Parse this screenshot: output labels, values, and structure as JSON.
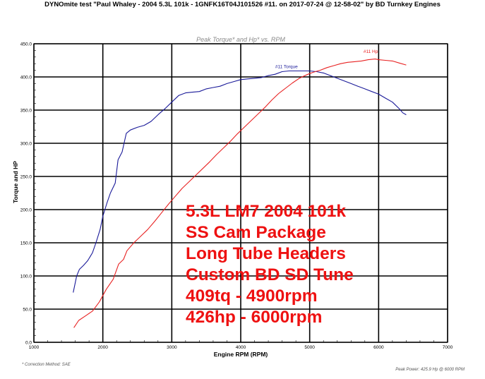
{
  "header": {
    "title": "DYNOmite test \"Paul Whaley - 2004 5.3L 101k - 1GNFK16T04J101526 #11. on 2017-07-24 @ 12-58-02\" by BD Turnkey Engines"
  },
  "footer": {
    "correction_method": "* Correction Method: SAE",
    "peak_power": "Peak Power: 425.9 Hp @ 6000 RPM"
  },
  "annotation": {
    "lines": [
      "5.3L LM7 2004 101k",
      "SS Cam Package",
      "Long Tube Headers",
      "Custom BD SD Tune",
      "409tq - 4900rpm",
      "426hp - 6000rpm"
    ]
  },
  "chart_data": {
    "type": "line",
    "title": "Peak Torque* and Hp* vs. RPM",
    "xlabel": "Engine RPM (RPM)",
    "ylabel": "Torque and HP",
    "xlim": [
      1000,
      7000
    ],
    "ylim": [
      0,
      450
    ],
    "x_ticks": [
      "1000",
      "2000",
      "3000",
      "4000",
      "5000",
      "6000",
      "7000"
    ],
    "y_ticks": [
      "0.0",
      "50.0",
      "100.0",
      "150.0",
      "200.0",
      "250.0",
      "300.0",
      "350.0",
      "400.0",
      "450.0"
    ],
    "grid": true,
    "series": [
      {
        "name": "#11 Torque",
        "color": "#1a1a99",
        "points": [
          [
            1570,
            75
          ],
          [
            1620,
            100
          ],
          [
            1660,
            110
          ],
          [
            1720,
            116
          ],
          [
            1780,
            123
          ],
          [
            1850,
            135
          ],
          [
            1900,
            150
          ],
          [
            1960,
            170
          ],
          [
            2000,
            190
          ],
          [
            2060,
            210
          ],
          [
            2110,
            225
          ],
          [
            2180,
            240
          ],
          [
            2220,
            275
          ],
          [
            2280,
            287
          ],
          [
            2340,
            315
          ],
          [
            2400,
            320
          ],
          [
            2500,
            324
          ],
          [
            2600,
            327
          ],
          [
            2700,
            333
          ],
          [
            2800,
            343
          ],
          [
            2900,
            352
          ],
          [
            3000,
            362
          ],
          [
            3100,
            372
          ],
          [
            3200,
            376
          ],
          [
            3300,
            377
          ],
          [
            3400,
            378
          ],
          [
            3500,
            382
          ],
          [
            3600,
            384
          ],
          [
            3700,
            386
          ],
          [
            3800,
            390
          ],
          [
            3900,
            393
          ],
          [
            4000,
            396
          ],
          [
            4100,
            397
          ],
          [
            4200,
            398
          ],
          [
            4300,
            399
          ],
          [
            4400,
            402
          ],
          [
            4500,
            404
          ],
          [
            4600,
            408
          ],
          [
            4700,
            409
          ],
          [
            4800,
            409
          ],
          [
            4900,
            409
          ],
          [
            5000,
            409
          ],
          [
            5100,
            408
          ],
          [
            5200,
            406
          ],
          [
            5300,
            402
          ],
          [
            5400,
            398
          ],
          [
            5500,
            394
          ],
          [
            5600,
            390
          ],
          [
            5700,
            386
          ],
          [
            5800,
            382
          ],
          [
            5900,
            378
          ],
          [
            6000,
            374
          ],
          [
            6100,
            368
          ],
          [
            6200,
            362
          ],
          [
            6300,
            352
          ],
          [
            6350,
            346
          ],
          [
            6400,
            343
          ]
        ]
      },
      {
        "name": "#11 Hp",
        "color": "#e82222",
        "points": [
          [
            1580,
            22
          ],
          [
            1650,
            33
          ],
          [
            1750,
            40
          ],
          [
            1850,
            47
          ],
          [
            1950,
            61
          ],
          [
            2050,
            80
          ],
          [
            2150,
            95
          ],
          [
            2230,
            118
          ],
          [
            2300,
            125
          ],
          [
            2350,
            138
          ],
          [
            2450,
            150
          ],
          [
            2550,
            160
          ],
          [
            2650,
            170
          ],
          [
            2750,
            182
          ],
          [
            2850,
            195
          ],
          [
            2950,
            208
          ],
          [
            3050,
            220
          ],
          [
            3150,
            232
          ],
          [
            3250,
            242
          ],
          [
            3350,
            252
          ],
          [
            3450,
            262
          ],
          [
            3550,
            272
          ],
          [
            3650,
            283
          ],
          [
            3750,
            293
          ],
          [
            3850,
            303
          ],
          [
            3950,
            314
          ],
          [
            4050,
            324
          ],
          [
            4150,
            334
          ],
          [
            4250,
            344
          ],
          [
            4350,
            354
          ],
          [
            4450,
            365
          ],
          [
            4550,
            375
          ],
          [
            4650,
            383
          ],
          [
            4750,
            391
          ],
          [
            4850,
            398
          ],
          [
            4950,
            403
          ],
          [
            5050,
            407
          ],
          [
            5150,
            410
          ],
          [
            5250,
            414
          ],
          [
            5350,
            417
          ],
          [
            5450,
            420
          ],
          [
            5550,
            422
          ],
          [
            5650,
            423
          ],
          [
            5750,
            424
          ],
          [
            5850,
            426
          ],
          [
            5950,
            427
          ],
          [
            6000,
            426
          ],
          [
            6100,
            425
          ],
          [
            6200,
            424
          ],
          [
            6300,
            421
          ],
          [
            6400,
            418
          ]
        ]
      }
    ]
  }
}
